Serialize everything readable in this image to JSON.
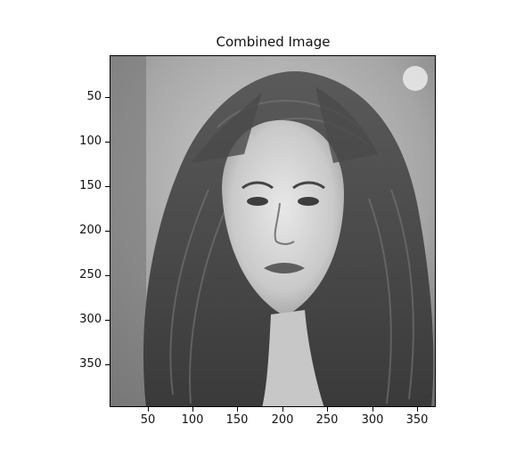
{
  "figure": {
    "title": "Combined Image",
    "image": {
      "description_icon": "portrait-photo",
      "palette": [
        "#2a2a2a",
        "#6e6e6e",
        "#bdbdbd",
        "#ececec"
      ]
    },
    "x_axis": {
      "range": [
        1,
        370
      ],
      "ticks": [
        50,
        100,
        150,
        200,
        250,
        300,
        350
      ]
    },
    "y_axis": {
      "range": [
        1,
        396
      ],
      "inverted": true,
      "ticks": [
        50,
        100,
        150,
        200,
        250,
        300,
        350
      ]
    }
  }
}
